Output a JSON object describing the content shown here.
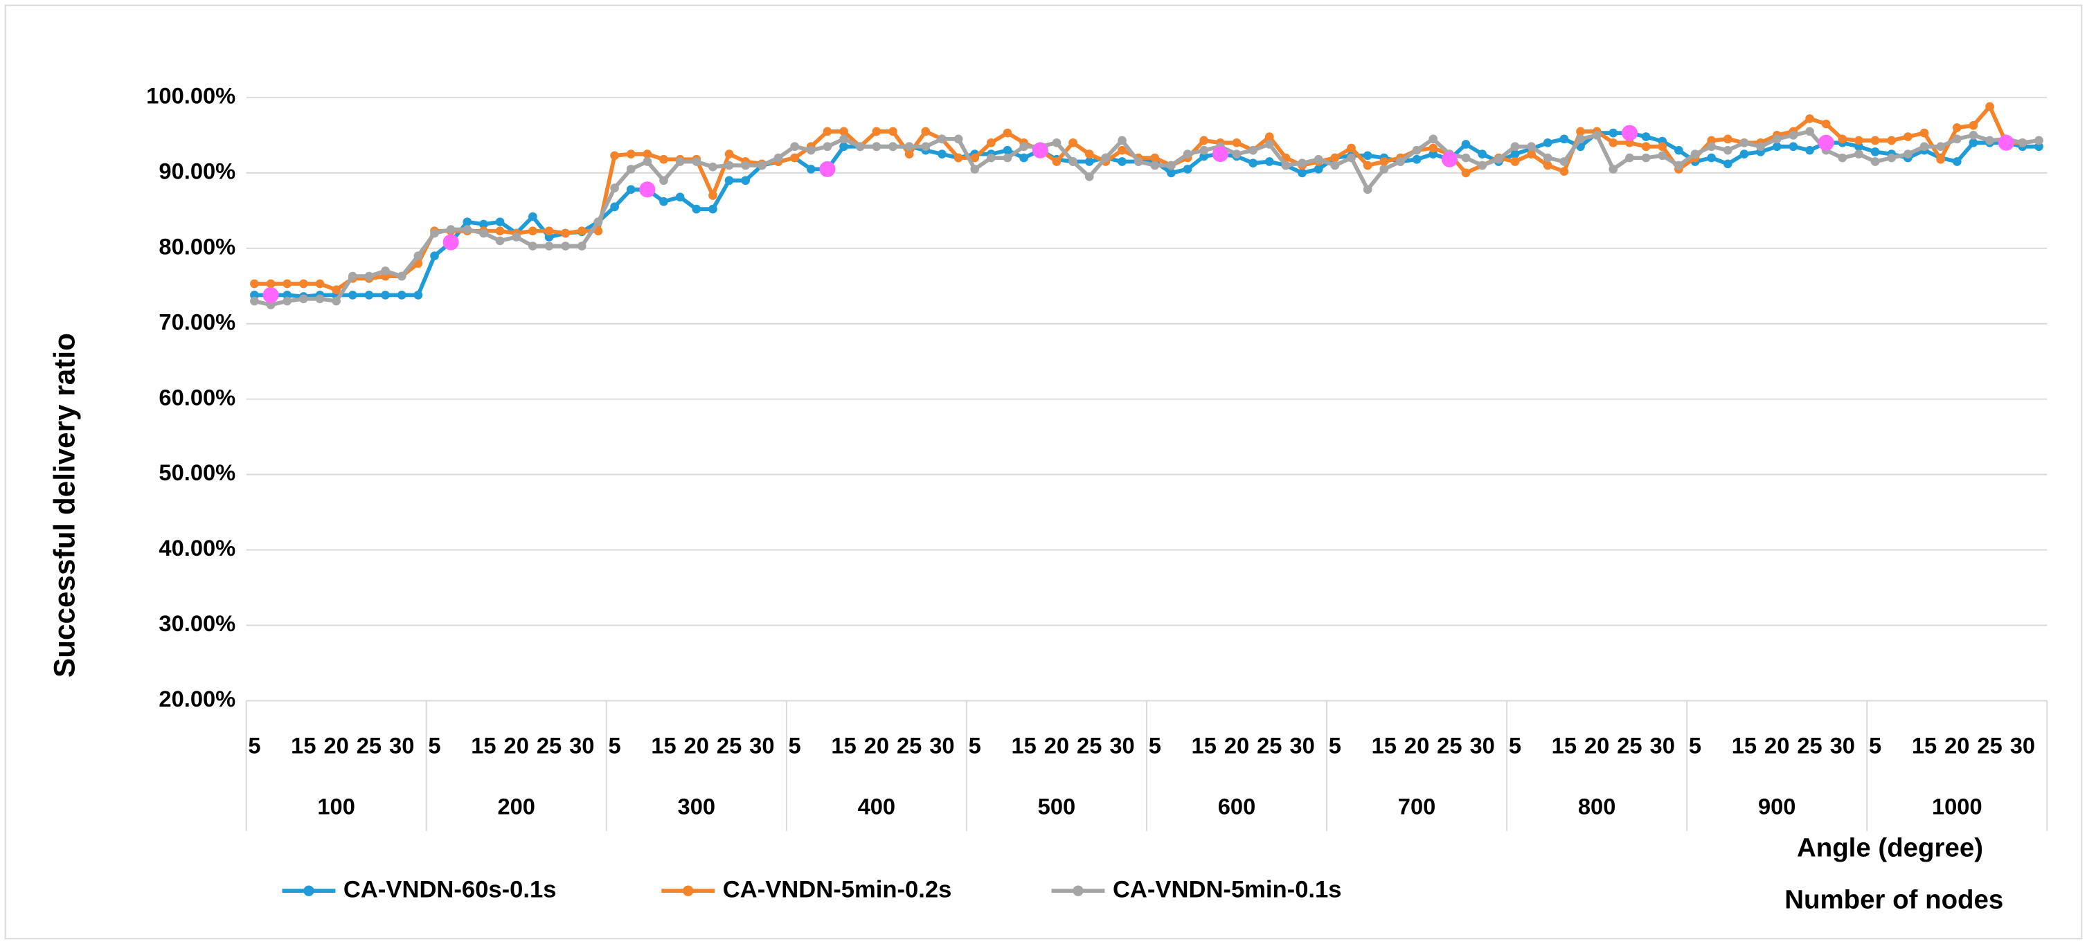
{
  "chart_data": {
    "type": "line",
    "y_label": "Successful delivery ratio",
    "x_label": "Angle (degree)",
    "x2_label": "Number of nodes",
    "groups": [
      "100",
      "200",
      "300",
      "400",
      "500",
      "600",
      "700",
      "800",
      "900",
      "1000"
    ],
    "categories": [
      "5",
      null,
      null,
      "15",
      null,
      "20",
      null,
      "25",
      null,
      "30",
      null,
      "5",
      null,
      null,
      "15",
      null,
      "20",
      null,
      "25",
      null,
      "30",
      null,
      "5",
      null,
      null,
      "15",
      null,
      "20",
      null,
      "25",
      null,
      "30",
      null,
      "5",
      null,
      null,
      "15",
      null,
      "20",
      null,
      "25",
      null,
      "30",
      null,
      "5",
      null,
      null,
      "15",
      null,
      "20",
      null,
      "25",
      null,
      "30",
      null,
      "5",
      null,
      null,
      "15",
      null,
      "20",
      null,
      "25",
      null,
      "30",
      null,
      "5",
      null,
      null,
      "15",
      null,
      "20",
      null,
      "25",
      null,
      "30",
      null,
      "5",
      null,
      null,
      "15",
      null,
      "20",
      null,
      "25",
      null,
      "30",
      null,
      "5",
      null,
      null,
      "15",
      null,
      "20",
      null,
      "25",
      null,
      "30",
      null,
      "5",
      null,
      null,
      "15",
      null,
      "20",
      null,
      "25",
      null,
      "30",
      null
    ],
    "ylim": [
      20,
      105
    ],
    "yticks": [
      {
        "value": 20,
        "label": "20.00%"
      },
      {
        "value": 30,
        "label": "30.00%"
      },
      {
        "value": 40,
        "label": "40.00%"
      },
      {
        "value": 50,
        "label": "50.00%"
      },
      {
        "value": 60,
        "label": "60.00%"
      },
      {
        "value": 70,
        "label": "70.00%"
      },
      {
        "value": 80,
        "label": "80.00%"
      },
      {
        "value": 90,
        "label": "90.00%"
      },
      {
        "value": 100,
        "label": "100.00%"
      }
    ],
    "grid": true,
    "legend": "bottom",
    "series": [
      {
        "name": "CA-VNDN-60s-0.1s",
        "color": "#1f9bd7",
        "values": [
          73.8,
          73.8,
          73.8,
          73.6,
          73.8,
          73.8,
          73.8,
          73.8,
          73.8,
          73.8,
          73.8,
          79.0,
          80.8,
          83.5,
          83.2,
          83.5,
          82.0,
          84.2,
          81.5,
          82.0,
          82.2,
          83.5,
          85.5,
          87.8,
          87.8,
          86.2,
          86.8,
          85.2,
          85.2,
          89.0,
          89.0,
          91.0,
          91.5,
          92.0,
          90.5,
          90.5,
          93.5,
          93.5,
          93.5,
          93.5,
          93.5,
          93.0,
          92.5,
          92.0,
          92.5,
          92.5,
          93.0,
          92.0,
          93.0,
          91.8,
          91.5,
          91.5,
          92.0,
          91.5,
          91.5,
          91.5,
          90.0,
          90.5,
          92.2,
          92.5,
          92.2,
          91.3,
          91.5,
          91.0,
          90.0,
          90.5,
          92.0,
          92.3,
          92.3,
          92.0,
          91.5,
          91.8,
          92.5,
          91.8,
          93.8,
          92.5,
          91.5,
          92.5,
          93.2,
          94.0,
          94.5,
          93.5,
          95.3,
          95.3,
          95.3,
          94.8,
          94.2,
          93.0,
          91.5,
          92.0,
          91.2,
          92.5,
          92.8,
          93.5,
          93.5,
          93.0,
          94.0,
          94.0,
          93.5,
          92.8,
          92.5,
          92.0,
          93.0,
          92.0,
          91.5,
          94.0,
          94.0,
          94.0,
          93.5,
          93.5
        ]
      },
      {
        "name": "CA-VNDN-5min-0.2s",
        "color": "#f5832a",
        "values": [
          75.3,
          75.3,
          75.3,
          75.3,
          75.3,
          74.5,
          76.0,
          76.0,
          76.3,
          76.3,
          78.0,
          82.3,
          82.3,
          82.3,
          82.3,
          82.3,
          82.0,
          82.3,
          82.3,
          82.0,
          82.3,
          82.3,
          92.3,
          92.5,
          92.5,
          91.8,
          91.8,
          91.8,
          87.0,
          92.5,
          91.5,
          91.2,
          91.5,
          92.0,
          93.5,
          95.5,
          95.5,
          93.5,
          95.5,
          95.5,
          92.5,
          95.5,
          94.5,
          92.0,
          92.0,
          94.0,
          95.3,
          94.0,
          93.0,
          91.5,
          94.0,
          92.5,
          91.5,
          93.0,
          92.0,
          92.0,
          91.0,
          92.0,
          94.3,
          94.0,
          94.0,
          93.0,
          94.8,
          92.0,
          91.0,
          91.5,
          92.0,
          93.3,
          91.0,
          91.5,
          92.0,
          93.0,
          93.3,
          92.5,
          90.0,
          91.0,
          92.0,
          91.5,
          92.5,
          91.0,
          90.2,
          95.5,
          95.5,
          94.0,
          94.0,
          93.5,
          93.5,
          90.5,
          92.0,
          94.3,
          94.5,
          94.0,
          94.0,
          95.0,
          95.5,
          97.2,
          96.5,
          94.5,
          94.3,
          94.3,
          94.3,
          94.8,
          95.3,
          91.8,
          96.0,
          96.3,
          98.8,
          94.0,
          94.0,
          94.3
        ]
      },
      {
        "name": "CA-VNDN-5min-0.1s",
        "color": "#a5a5a5",
        "values": [
          73.0,
          72.5,
          73.0,
          73.3,
          73.3,
          73.0,
          76.3,
          76.3,
          77.0,
          76.3,
          79.0,
          82.0,
          82.5,
          82.5,
          82.0,
          81.0,
          81.5,
          80.3,
          80.3,
          80.3,
          80.3,
          83.5,
          88.0,
          90.5,
          91.5,
          89.0,
          91.5,
          91.5,
          90.8,
          91.0,
          91.0,
          91.0,
          92.0,
          93.5,
          93.0,
          93.5,
          94.5,
          93.5,
          93.5,
          93.5,
          93.5,
          93.5,
          94.5,
          94.5,
          90.5,
          92.0,
          92.0,
          93.5,
          93.5,
          94.0,
          91.5,
          89.5,
          92.0,
          94.3,
          91.5,
          91.0,
          91.0,
          92.5,
          93.0,
          93.5,
          92.5,
          93.0,
          93.8,
          91.0,
          91.3,
          91.8,
          91.0,
          92.0,
          87.8,
          90.5,
          91.5,
          93.0,
          94.5,
          92.5,
          92.0,
          91.0,
          91.8,
          93.5,
          93.5,
          92.0,
          91.5,
          94.5,
          95.0,
          90.5,
          92.0,
          92.0,
          92.3,
          91.0,
          92.5,
          93.5,
          93.0,
          94.0,
          93.5,
          94.5,
          95.0,
          95.5,
          93.0,
          92.0,
          92.5,
          91.5,
          92.0,
          92.5,
          93.5,
          93.5,
          94.5,
          95.0,
          94.3,
          94.5,
          94.0,
          94.3
        ]
      }
    ],
    "highlight": {
      "series": 0,
      "color": "#ff66ff",
      "points": [
        1,
        12,
        24,
        35,
        48,
        59,
        73,
        84,
        96,
        107
      ]
    }
  }
}
